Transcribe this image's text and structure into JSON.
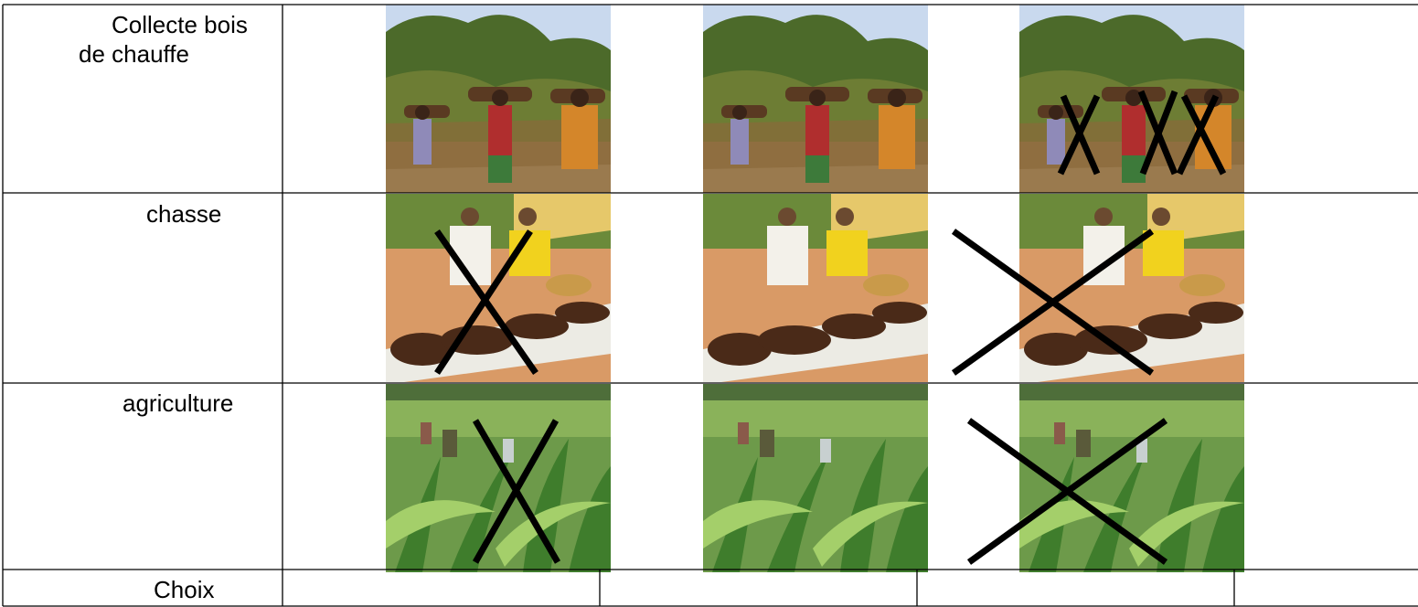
{
  "table": {
    "rows": [
      "Collecte bois de chauffe",
      "chasse",
      "agriculture",
      "Choix"
    ]
  }
}
